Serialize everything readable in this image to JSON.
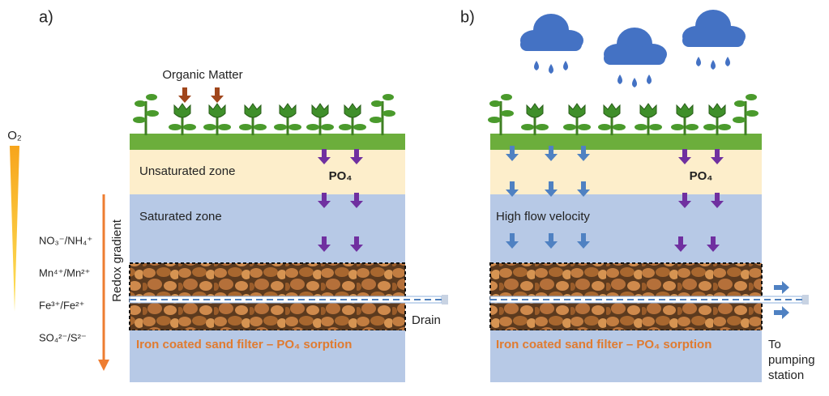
{
  "panel_a": {
    "label": "a)",
    "organic_matter": "Organic Matter",
    "oxygen": "O₂",
    "unsaturated_zone": "Unsaturated zone",
    "phosphate": "PO₄",
    "saturated_zone": "Saturated zone",
    "redox_gradient": "Redox gradient",
    "redox_couples": [
      "NO₃⁻/NH₄⁺",
      "Mn⁴⁺/Mn²⁺",
      "Fe³⁺/Fe²⁺",
      "SO₄²⁻/S²⁻"
    ],
    "drain": "Drain",
    "filter": "Iron coated sand filter – PO₄ sorption"
  },
  "panel_b": {
    "label": "b)",
    "phosphate": "PO₄",
    "high_flow": "High flow velocity",
    "filter": "Iron coated sand filter – PO₄ sorption",
    "outlet": [
      "To",
      "pumping",
      "station"
    ]
  }
}
